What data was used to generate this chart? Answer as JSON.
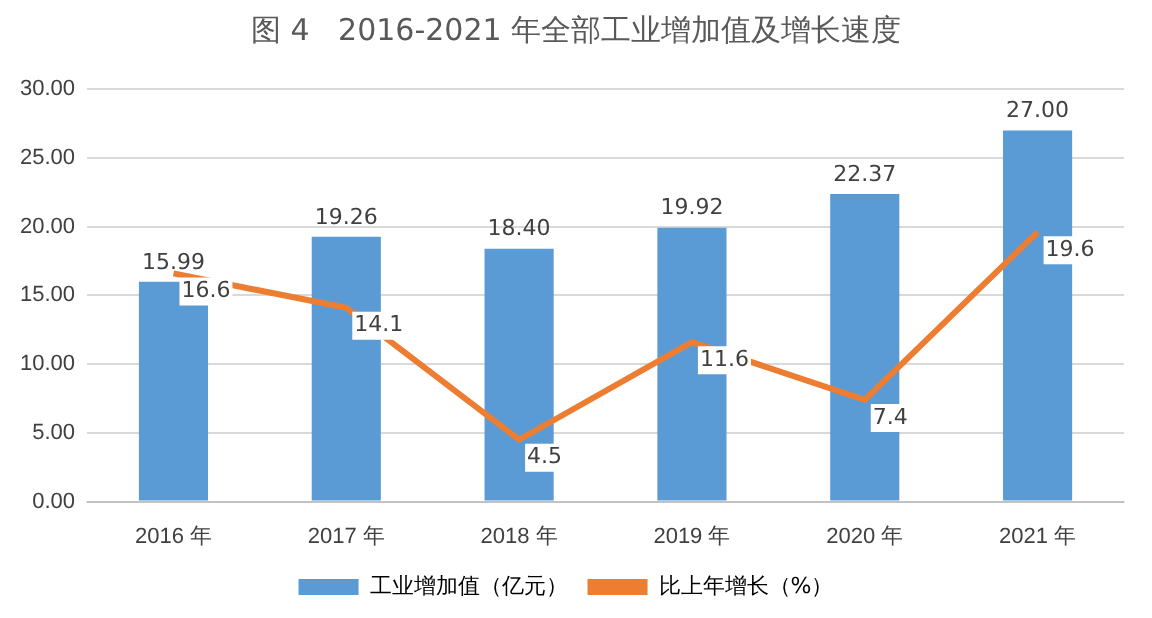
{
  "chart_data": {
    "type": "bar",
    "title": "图 4   2016-2021 年全部工业增加值及增长速度",
    "categories": [
      "2016 年",
      "2017 年",
      "2018 年",
      "2019 年",
      "2020 年",
      "2021 年"
    ],
    "series": [
      {
        "name": "工业增加值（亿元）",
        "color": "#5b9bd5",
        "values": [
          15.99,
          19.26,
          18.4,
          19.92,
          22.37,
          27.0
        ],
        "value_labels": [
          "15.99",
          "19.26",
          "18.40",
          "19.92",
          "22.37",
          "27.00"
        ]
      },
      {
        "name": "比上年增长（%）",
        "type": "line",
        "color": "#ed7d31",
        "values": [
          16.6,
          14.1,
          4.5,
          11.6,
          7.4,
          19.6
        ],
        "value_labels": [
          "16.6",
          "14.1",
          "4.5",
          "11.6",
          "7.4",
          "19.6"
        ]
      }
    ],
    "ylim": [
      0,
      30
    ],
    "yticks": [
      {
        "value": 0,
        "label": "0.00"
      },
      {
        "value": 5,
        "label": "5.00"
      },
      {
        "value": 10,
        "label": "10.00"
      },
      {
        "value": 15,
        "label": "15.00"
      },
      {
        "value": 20,
        "label": "20.00"
      },
      {
        "value": 25,
        "label": "25.00"
      },
      {
        "value": 30,
        "label": "30.00"
      }
    ],
    "grid": "y",
    "legend": "bottom",
    "marker": "none",
    "line_style": "solid"
  }
}
